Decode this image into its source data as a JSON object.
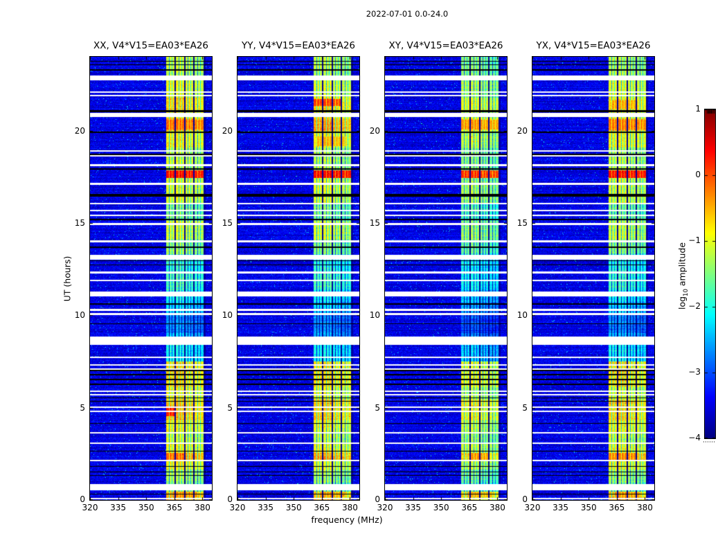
{
  "chart_data": {
    "type": "heatmap",
    "title": "2022-07-01 0.0-24.0",
    "xlabel": "frequency (MHz)",
    "ylabel": "UT (hours)",
    "xlim": [
      320,
      385
    ],
    "ylim": [
      0,
      24
    ],
    "xticks": [
      320,
      335,
      350,
      365,
      380
    ],
    "yticks": [
      0,
      5,
      10,
      15,
      20
    ],
    "colormap": "jet",
    "grid": false,
    "colorbar": {
      "label_prefix": "log",
      "label_sub": "10",
      "label_suffix": " amplitude",
      "vmin": -4,
      "vmax": 1,
      "ticks": [
        1,
        0,
        -1,
        -2,
        -3,
        -4
      ],
      "tick_labels": [
        "1",
        "0",
        "−1",
        "−2",
        "−3",
        "−4"
      ]
    },
    "panels": [
      {
        "title": "XX, V4*V15=EA03*EA26",
        "pol": "XX",
        "band_gain": 0
      },
      {
        "title": "YY, V4*V15=EA03*EA26",
        "pol": "YY",
        "band_gain": -0.05
      },
      {
        "title": "XY, V4*V15=EA03*EA26",
        "pol": "XY",
        "band_gain": -0.3
      },
      {
        "title": "YX, V4*V15=EA03*EA26",
        "pol": "YX",
        "band_gain": -0.05
      }
    ],
    "background_level": -3.5,
    "rfi_band": {
      "f_start": 360.5,
      "f_end": 381.5,
      "sub_bands": [
        [
          360.8,
          365.2
        ],
        [
          365.8,
          370.2
        ],
        [
          370.8,
          375.2
        ],
        [
          375.8,
          380.4
        ]
      ],
      "sub_band_gain": [
        0.05,
        0.1,
        -0.05,
        -0.15
      ],
      "channel_notches": [
        [
          1.35,
          1.75,
          -1.5
        ],
        [
          2.85,
          3.15,
          -1.0
        ]
      ]
    },
    "band_profile": [
      [
        0.0,
        0.45,
        -0.5
      ],
      [
        0.45,
        0.92,
        -1.5
      ],
      [
        0.92,
        1.65,
        -1.3
      ],
      [
        1.65,
        2.15,
        -0.9
      ],
      [
        2.15,
        2.55,
        -0.4
      ],
      [
        2.55,
        3.1,
        -0.9
      ],
      [
        3.1,
        3.6,
        -1.1
      ],
      [
        3.6,
        4.3,
        -0.9
      ],
      [
        4.3,
        5.45,
        -0.6
      ],
      [
        5.45,
        6.1,
        -0.95
      ],
      [
        6.1,
        7.5,
        -0.7
      ],
      [
        7.5,
        8.45,
        -2.1
      ],
      [
        8.45,
        9.05,
        -2.5
      ],
      [
        9.05,
        10.0,
        -2.7
      ],
      [
        10.0,
        10.72,
        -2.3
      ],
      [
        10.72,
        11.35,
        -2.1
      ],
      [
        11.35,
        12.35,
        -1.8
      ],
      [
        12.35,
        13.3,
        -1.9
      ],
      [
        13.3,
        14.1,
        -1.4
      ],
      [
        14.1,
        15.1,
        -1.1
      ],
      [
        15.1,
        16.1,
        -1.5
      ],
      [
        16.1,
        17.2,
        -1.0
      ],
      [
        17.2,
        17.45,
        -1.1
      ],
      [
        17.45,
        17.85,
        0.3
      ],
      [
        17.85,
        18.55,
        -1.15
      ],
      [
        18.55,
        19.1,
        -1.2
      ],
      [
        19.1,
        20.0,
        -0.85
      ],
      [
        20.0,
        20.65,
        -0.4
      ],
      [
        20.65,
        21.1,
        -0.85
      ],
      [
        21.1,
        21.8,
        -0.7
      ],
      [
        21.8,
        22.8,
        -1.0
      ],
      [
        22.8,
        24.0,
        -1.2
      ]
    ],
    "time_gaps": [
      [
        0.08,
        0.05
      ],
      [
        0.68,
        0.35
      ],
      [
        2.12,
        0.09
      ],
      [
        3.05,
        0.09
      ],
      [
        3.62,
        0.09
      ],
      [
        4.8,
        0.07
      ],
      [
        5.02,
        0.07
      ],
      [
        5.68,
        0.08
      ],
      [
        5.88,
        0.08
      ],
      [
        7.08,
        0.08
      ],
      [
        7.32,
        0.08
      ],
      [
        7.72,
        0.07
      ],
      [
        8.62,
        0.45
      ],
      [
        10.06,
        0.11
      ],
      [
        10.3,
        0.11
      ],
      [
        11.15,
        0.25
      ],
      [
        11.87,
        0.08
      ],
      [
        12.33,
        0.12
      ],
      [
        13.15,
        0.28
      ],
      [
        14.0,
        0.1
      ],
      [
        14.95,
        0.1
      ],
      [
        15.43,
        0.07
      ],
      [
        15.66,
        0.08
      ],
      [
        16.05,
        0.08
      ],
      [
        17.12,
        0.1
      ],
      [
        18.15,
        0.1
      ],
      [
        18.62,
        0.08
      ],
      [
        18.88,
        0.08
      ],
      [
        20.85,
        0.22
      ],
      [
        21.9,
        0.07
      ],
      [
        22.07,
        0.08
      ],
      [
        22.85,
        0.25
      ]
    ],
    "flagged_lines": [
      [
        0.3,
        0.05
      ],
      [
        1.32,
        0.05
      ],
      [
        1.52,
        0.05
      ],
      [
        1.82,
        0.05
      ],
      [
        2.62,
        0.05
      ],
      [
        4.15,
        0.05
      ],
      [
        5.32,
        0.05
      ],
      [
        5.52,
        0.05
      ],
      [
        6.28,
        0.06
      ],
      [
        6.52,
        0.06
      ],
      [
        6.78,
        0.06
      ],
      [
        7.02,
        0.06
      ],
      [
        9.55,
        0.05
      ],
      [
        10.62,
        0.06
      ],
      [
        12.72,
        0.05
      ],
      [
        12.95,
        0.05
      ],
      [
        13.7,
        0.06
      ],
      [
        14.9,
        0.05
      ],
      [
        15.18,
        0.06
      ],
      [
        16.5,
        0.15
      ],
      [
        17.92,
        0.06
      ],
      [
        18.72,
        0.06
      ],
      [
        19.92,
        0.08
      ],
      [
        21.05,
        0.1
      ],
      [
        23.3,
        0.06
      ],
      [
        23.55,
        0.05
      ],
      [
        23.75,
        0.05
      ]
    ],
    "hotspots": {
      "XX": [
        [
          17.45,
          17.85,
          360.8,
          380.4,
          0.35
        ],
        [
          20.05,
          20.6,
          360.8,
          380.4,
          -0.15
        ],
        [
          4.55,
          5.0,
          360.8,
          365.2,
          0.25
        ],
        [
          2.15,
          2.55,
          360.8,
          370.2,
          -0.15
        ],
        [
          0.15,
          0.45,
          364.0,
          378.0,
          -0.3
        ]
      ],
      "YY": [
        [
          17.45,
          17.85,
          360.8,
          380.4,
          0.35
        ],
        [
          21.35,
          21.7,
          360.8,
          375.2,
          0.05
        ],
        [
          19.15,
          19.7,
          362.0,
          378.0,
          -0.5
        ],
        [
          0.15,
          0.45,
          364.0,
          378.0,
          -0.4
        ]
      ],
      "XY": [
        [
          17.45,
          17.85,
          360.8,
          380.4,
          0.15
        ],
        [
          20.05,
          20.6,
          360.8,
          380.4,
          -0.35
        ],
        [
          2.15,
          2.55,
          365.8,
          375.2,
          -0.35
        ],
        [
          0.15,
          0.45,
          364.0,
          378.0,
          -0.5
        ]
      ],
      "YX": [
        [
          17.45,
          17.85,
          360.8,
          380.4,
          0.35
        ],
        [
          20.05,
          20.6,
          360.8,
          380.4,
          -0.2
        ],
        [
          2.15,
          2.55,
          360.8,
          375.2,
          -0.25
        ],
        [
          21.2,
          21.65,
          362.0,
          376.0,
          -0.45
        ],
        [
          0.15,
          0.45,
          364.0,
          378.0,
          -0.35
        ]
      ]
    },
    "colors": {
      "figure_bg": "#ffffff",
      "axes_fg": "#000000",
      "gap_color": "#ffffff",
      "flag_color": "#000000"
    }
  }
}
